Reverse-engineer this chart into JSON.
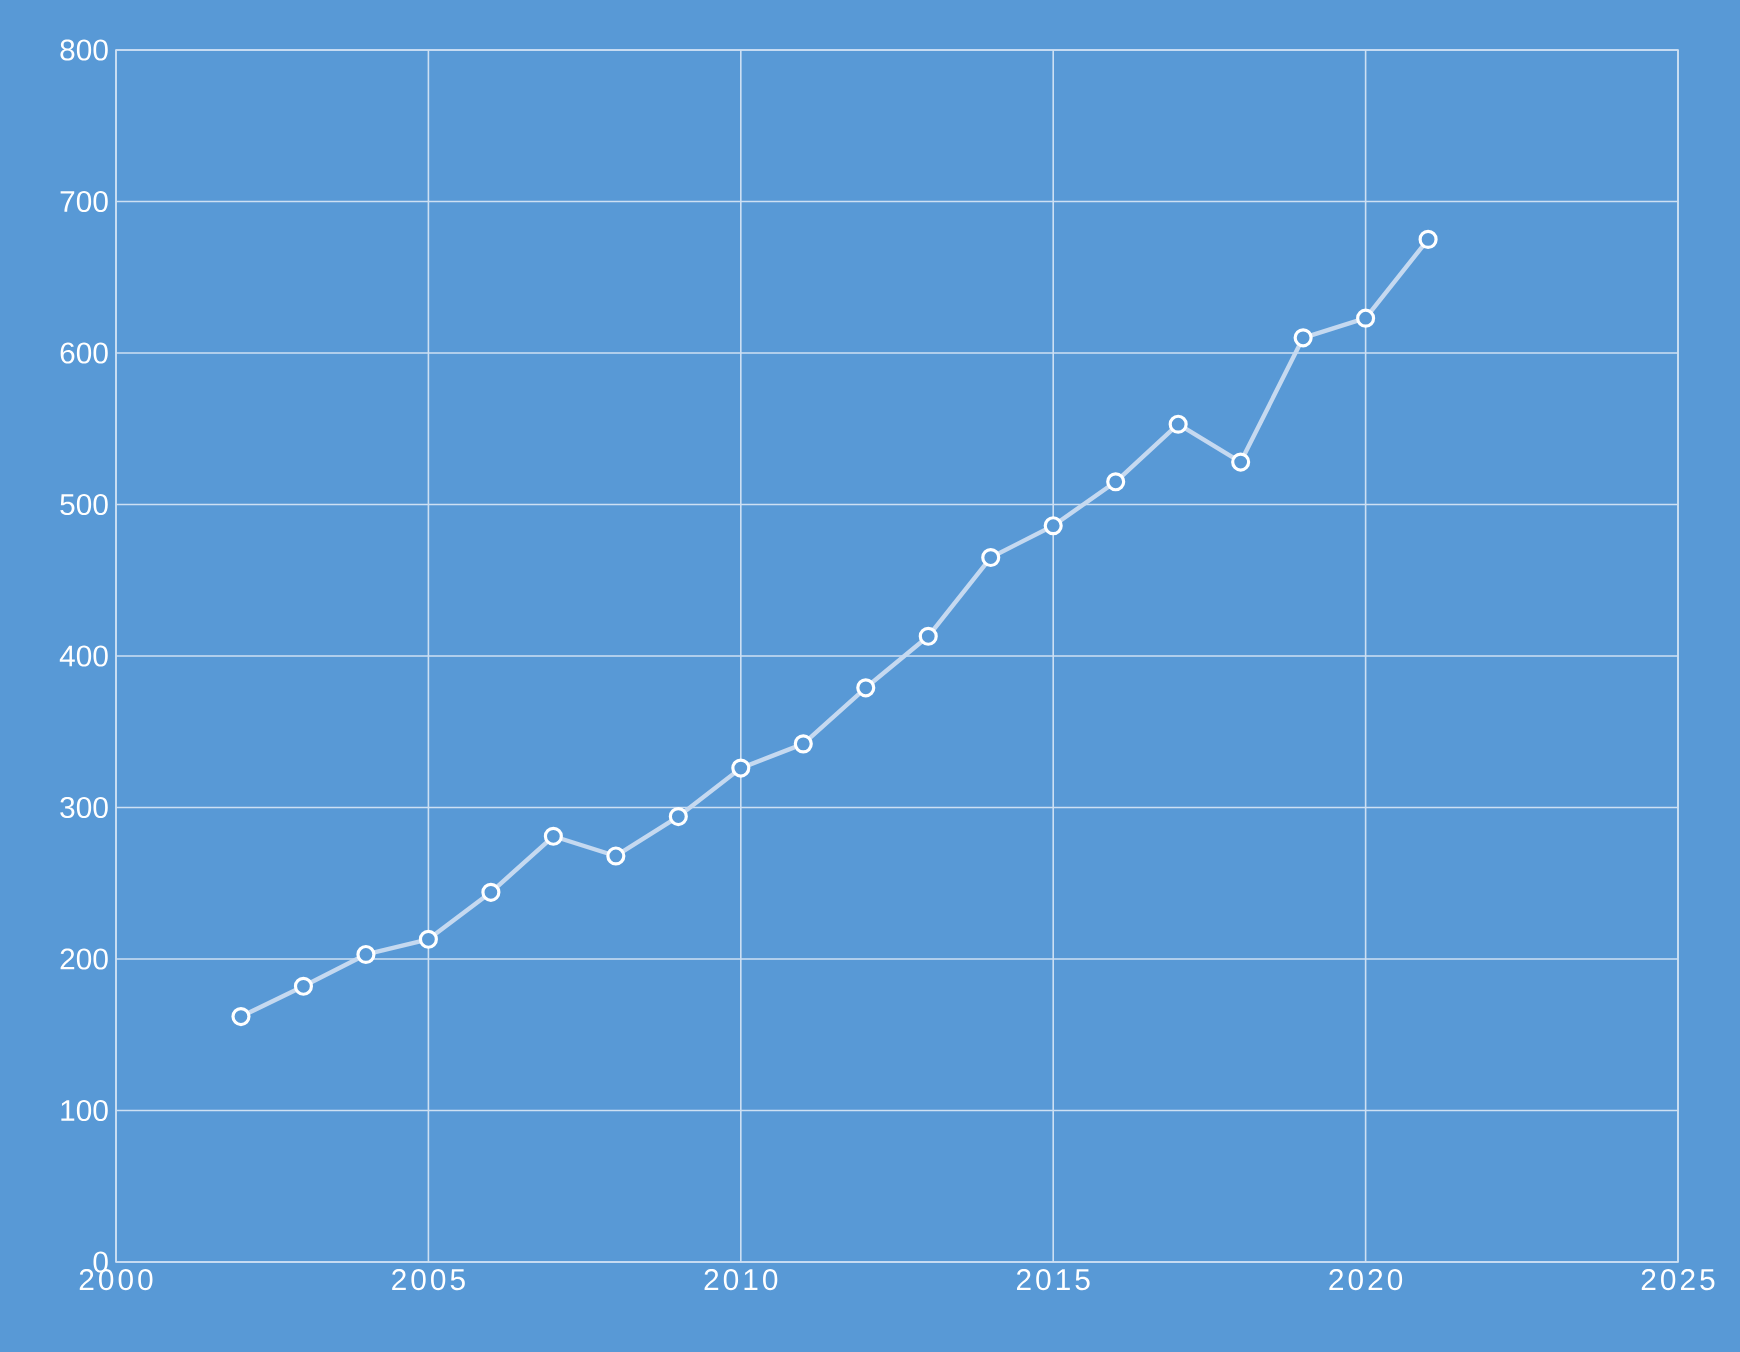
{
  "chart_data": {
    "type": "line",
    "x": [
      2002,
      2003,
      2004,
      2005,
      2006,
      2007,
      2008,
      2009,
      2010,
      2011,
      2012,
      2013,
      2014,
      2015,
      2016,
      2017,
      2018,
      2019,
      2020,
      2021
    ],
    "series": [
      {
        "color": "#c5d9f0",
        "values": [
          162,
          182,
          203,
          213,
          244,
          281,
          268,
          294,
          326,
          342,
          379,
          413,
          465,
          486,
          515,
          553,
          528,
          610,
          623,
          675
        ]
      }
    ],
    "xlim": [
      2000,
      2025
    ],
    "xticks": [
      2000,
      2005,
      2010,
      2015,
      2020,
      2025
    ],
    "ylim": [
      0,
      800
    ],
    "yticks": [
      0,
      100,
      200,
      300,
      400,
      500,
      600,
      700,
      800
    ],
    "grid": true,
    "marker": "circle",
    "line_style": "solid"
  }
}
